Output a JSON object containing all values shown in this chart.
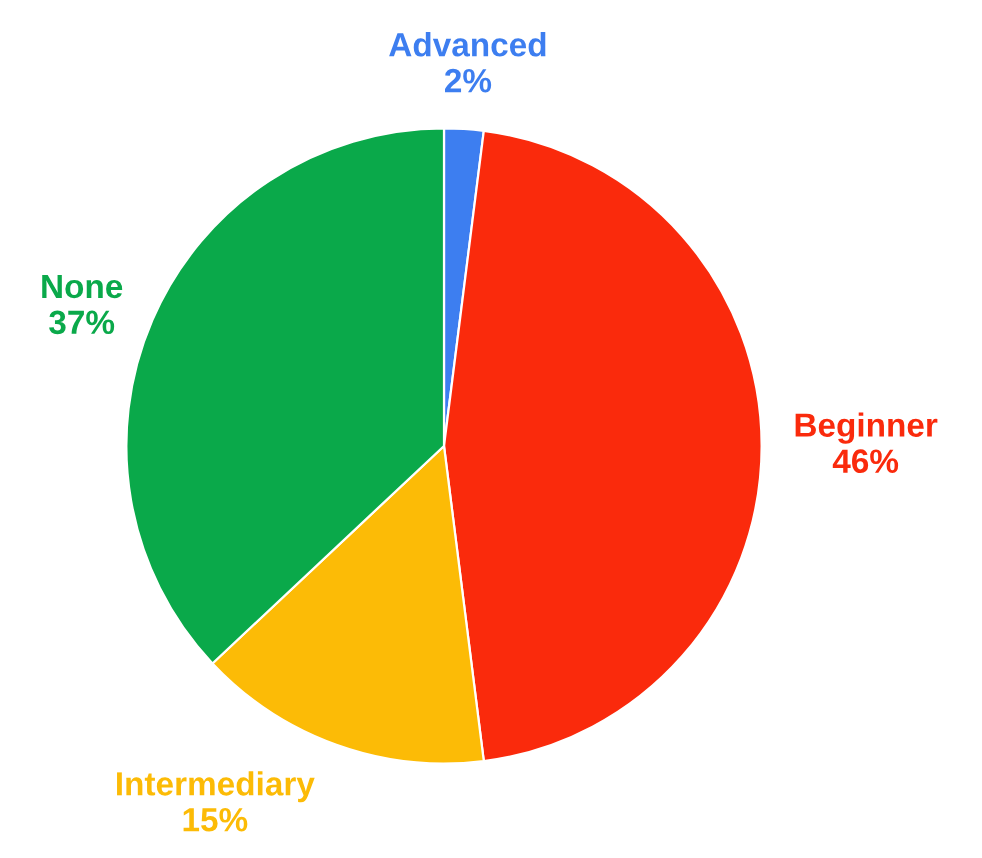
{
  "chart_data": {
    "type": "pie",
    "categories": [
      "Advanced",
      "Beginner",
      "Intermediary",
      "None"
    ],
    "values": [
      2,
      46,
      15,
      37
    ],
    "value_labels": [
      "2%",
      "46%",
      "15%",
      "37%"
    ],
    "colors": [
      "#3d7ef0",
      "#fa2a0c",
      "#fcbb06",
      "#0aa94a"
    ]
  }
}
